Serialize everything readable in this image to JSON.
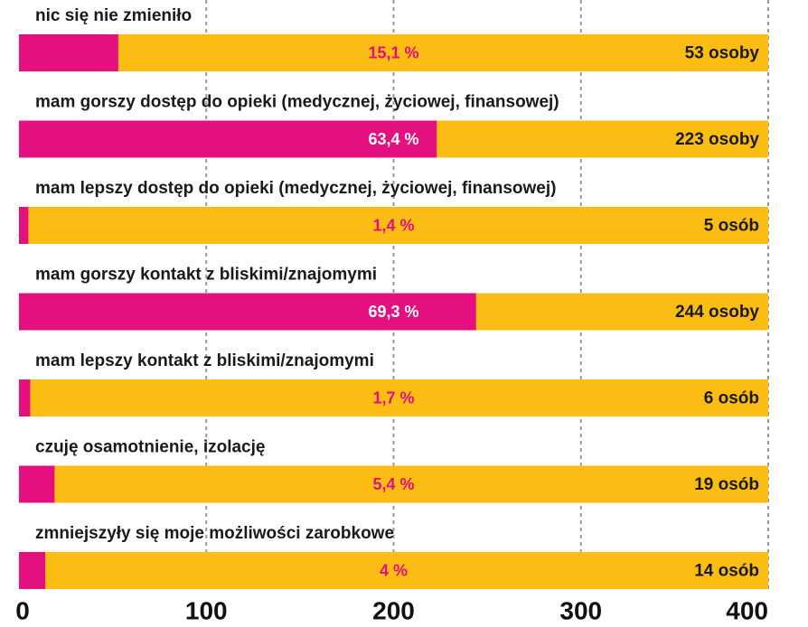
{
  "chart_data": {
    "type": "bar",
    "categories": [
      "nic się nie zmieniło",
      "mam gorszy dostęp do opieki (medycznej, życiowej, finansowej)",
      "mam lepszy dostęp do opieki (medycznej, życiowej, finansowej)",
      "mam gorszy kontakt z bliskimi/znajomymi",
      "mam lepszy kontakt z bliskimi/znajomymi",
      "czuję osamotnienie, izolację",
      "zmniejszyły się moje możliwości zarobkowe"
    ],
    "values": [
      53,
      223,
      5,
      244,
      6,
      19,
      14
    ],
    "value_labels": [
      "53 osoby",
      "223 osoby",
      "5 osób",
      "244 osoby",
      "6 osób",
      "19 osób",
      "14 osób"
    ],
    "percents": [
      15.1,
      63.4,
      1.4,
      69.3,
      1.7,
      5.4,
      4
    ],
    "percent_labels": [
      "15,1 %",
      "63,4 %",
      "1,4 %",
      "69,3 %",
      "1,7 %",
      "5,4 %",
      "4 %"
    ],
    "color": "#e4107f",
    "track_color": "#fbbd14",
    "xlim": [
      0,
      400
    ],
    "xticks": [
      0,
      100,
      200,
      300,
      400
    ],
    "grid": true
  }
}
